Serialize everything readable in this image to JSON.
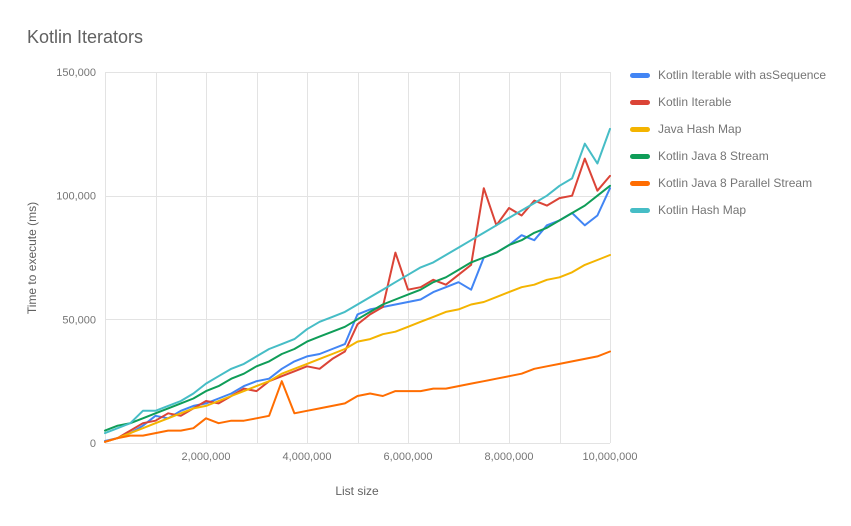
{
  "title": "Kotlin Iterators",
  "chart_data": {
    "type": "line",
    "title": "Kotlin Iterators",
    "xlabel": "List size",
    "ylabel": "Time to execute (ms)",
    "xlim": [
      0,
      10000000
    ],
    "ylim": [
      0,
      150000
    ],
    "grid": true,
    "legend_position": "right",
    "x_grid_step": 1000000,
    "x_ticks": [
      2000000,
      4000000,
      6000000,
      8000000,
      10000000
    ],
    "x_tick_labels": [
      "2,000,000",
      "4,000,000",
      "6,000,000",
      "8,000,000",
      "10,000,000"
    ],
    "y_ticks": [
      0,
      50000,
      100000,
      150000
    ],
    "y_tick_labels": [
      "0",
      "50,000",
      "100,000",
      "150,000"
    ],
    "grid_color": "#e3e3e3",
    "x": [
      0,
      250000,
      500000,
      750000,
      1000000,
      1250000,
      1500000,
      1750000,
      2000000,
      2250000,
      2500000,
      2750000,
      3000000,
      3250000,
      3500000,
      3750000,
      4000000,
      4250000,
      4500000,
      4750000,
      5000000,
      5250000,
      5500000,
      5750000,
      6000000,
      6250000,
      6500000,
      6750000,
      7000000,
      7250000,
      7500000,
      7750000,
      8000000,
      8250000,
      8500000,
      8750000,
      9000000,
      9250000,
      9500000,
      9750000,
      10000000
    ],
    "series": [
      {
        "name": "Kotlin Iterable with asSequence",
        "color": "#4285F4",
        "values": [
          800,
          2000,
          4000,
          7000,
          11000,
          10000,
          13000,
          15000,
          16000,
          18000,
          20000,
          23000,
          25000,
          26000,
          30000,
          33000,
          35000,
          36000,
          38000,
          40000,
          52000,
          54000,
          55000,
          56000,
          57000,
          58000,
          61000,
          63000,
          65000,
          62000,
          75000,
          77000,
          80000,
          84000,
          82000,
          88000,
          90000,
          93000,
          88000,
          92000,
          103000
        ]
      },
      {
        "name": "Kotlin Iterable",
        "color": "#DB4437",
        "values": [
          500,
          2000,
          5000,
          8000,
          9000,
          12000,
          11000,
          14000,
          17000,
          16000,
          19000,
          22000,
          21000,
          25000,
          27000,
          29000,
          31000,
          30000,
          34000,
          37000,
          48000,
          52000,
          55000,
          77000,
          62000,
          63000,
          66000,
          64000,
          68000,
          72000,
          103000,
          88000,
          95000,
          92000,
          98000,
          96000,
          99000,
          100000,
          115000,
          102000,
          108000
        ]
      },
      {
        "name": "Java Hash Map",
        "color": "#F4B400",
        "values": [
          500,
          2000,
          4000,
          6000,
          8000,
          10000,
          12000,
          14000,
          15000,
          17000,
          19000,
          21000,
          23000,
          25000,
          28000,
          30000,
          32000,
          34000,
          36000,
          38000,
          41000,
          42000,
          44000,
          45000,
          47000,
          49000,
          51000,
          53000,
          54000,
          56000,
          57000,
          59000,
          61000,
          63000,
          64000,
          66000,
          67000,
          69000,
          72000,
          74000,
          76000
        ]
      },
      {
        "name": "Kotlin Java 8 Stream",
        "color": "#0F9D58",
        "values": [
          5000,
          7000,
          8000,
          10000,
          12000,
          14000,
          16000,
          18000,
          21000,
          23000,
          26000,
          28000,
          31000,
          33000,
          36000,
          38000,
          41000,
          43000,
          45000,
          47000,
          50000,
          53000,
          56000,
          58000,
          60000,
          62000,
          65000,
          67000,
          70000,
          73000,
          75000,
          77000,
          80000,
          82000,
          85000,
          87000,
          90000,
          93000,
          96000,
          100000,
          104000
        ]
      },
      {
        "name": "Kotlin Java 8 Parallel Stream",
        "color": "#FF6D01",
        "values": [
          500,
          2000,
          3000,
          3000,
          4000,
          5000,
          5000,
          6000,
          10000,
          8000,
          9000,
          9000,
          10000,
          11000,
          25000,
          12000,
          13000,
          14000,
          15000,
          16000,
          19000,
          20000,
          19000,
          21000,
          21000,
          21000,
          22000,
          22000,
          23000,
          24000,
          25000,
          26000,
          27000,
          28000,
          30000,
          31000,
          32000,
          33000,
          34000,
          35000,
          37000
        ]
      },
      {
        "name": "Kotlin Hash Map",
        "color": "#46BDC6",
        "values": [
          4000,
          6000,
          8000,
          13000,
          13000,
          15000,
          17000,
          20000,
          24000,
          27000,
          30000,
          32000,
          35000,
          38000,
          40000,
          42000,
          46000,
          49000,
          51000,
          53000,
          56000,
          59000,
          62000,
          65000,
          68000,
          71000,
          73000,
          76000,
          79000,
          82000,
          85000,
          88000,
          91000,
          94000,
          97000,
          100000,
          104000,
          107000,
          121000,
          113000,
          127000
        ]
      }
    ]
  }
}
